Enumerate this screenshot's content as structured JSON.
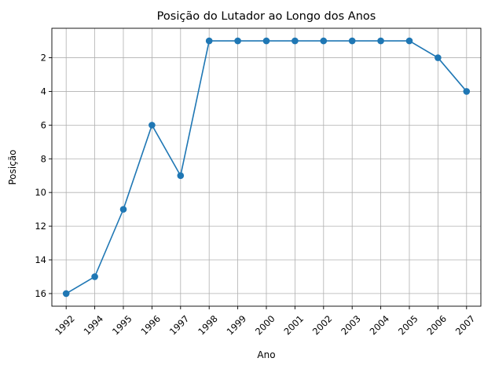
{
  "chart_data": {
    "type": "line",
    "title": "Posição do Lutador ao Longo dos Anos",
    "xlabel": "Ano",
    "ylabel": "Posição",
    "categories": [
      "1992",
      "1994",
      "1995",
      "1996",
      "1997",
      "1998",
      "1999",
      "2000",
      "2001",
      "2002",
      "2003",
      "2004",
      "2005",
      "2006",
      "2007"
    ],
    "series": [
      {
        "values": [
          16,
          15,
          11,
          6,
          9,
          1,
          1,
          1,
          1,
          1,
          1,
          1,
          1,
          2,
          4
        ],
        "color": "#1f77b4",
        "marker": "circle"
      }
    ],
    "y_ticks": [
      2,
      4,
      6,
      8,
      10,
      12,
      14,
      16
    ],
    "ylim": [
      16.75,
      0.25
    ],
    "y_inverted": true,
    "x_tick_rotation_deg": 45,
    "grid": true,
    "legend": false
  }
}
